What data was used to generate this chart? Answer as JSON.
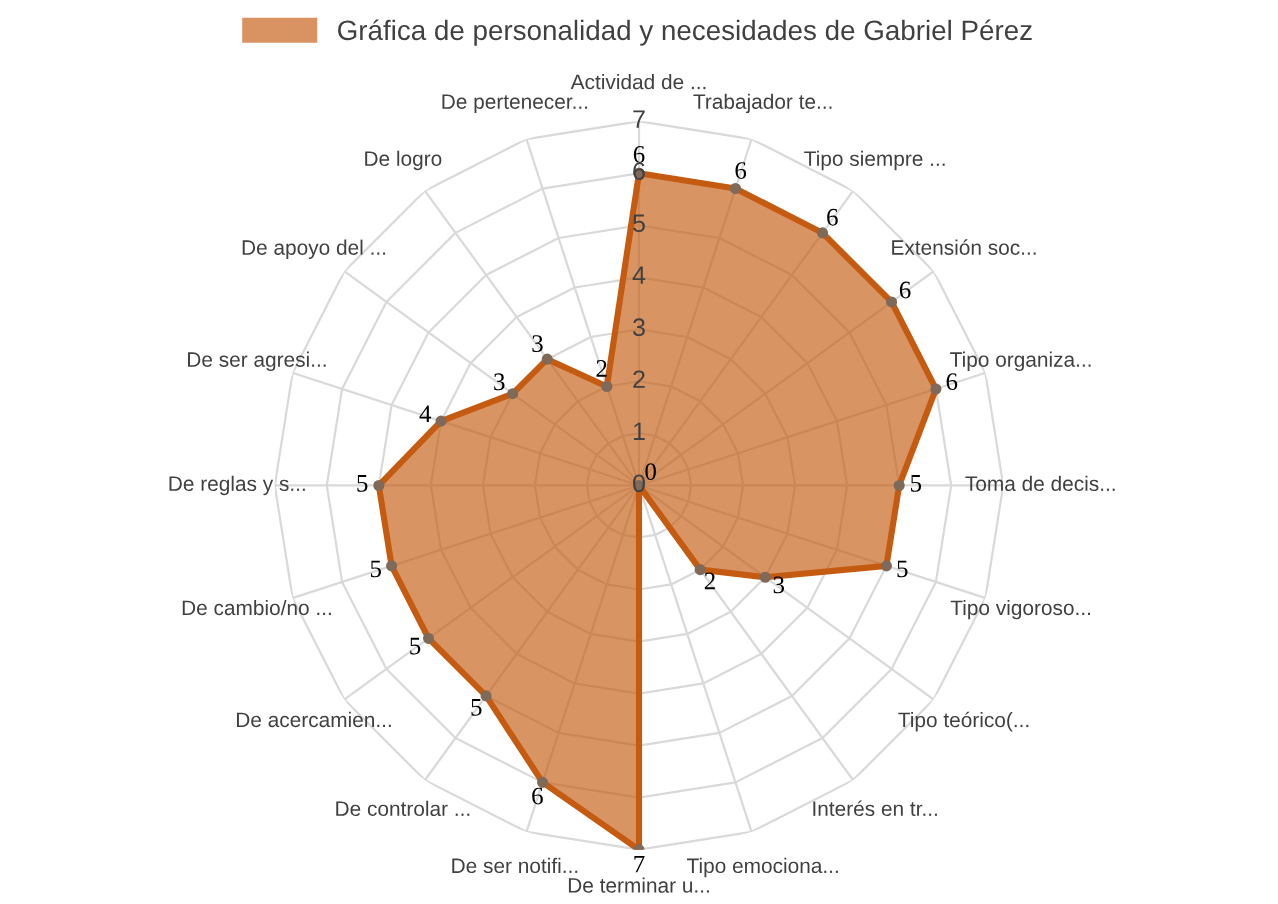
{
  "chart_data": {
    "type": "radar",
    "categories": [
      "Actividad de ...",
      "Trabajador te...",
      "Tipo siempre ...",
      "Extensión soc...",
      "Tipo organiza...",
      "Toma de decis...",
      "Tipo vigoroso...",
      "Tipo teórico(...",
      "Interés en tr...",
      "Tipo emociona...",
      "De terminar u...",
      "De ser notifi...",
      "De controlar ...",
      "De acercamien...",
      "De cambio/no ...",
      "De reglas y s...",
      "De ser agresi...",
      "De apoyo del ...",
      "De logro",
      "De pertenecer..."
    ],
    "series": [
      {
        "name": "Gráfica de personalidad y necesidades de Gabriel Pérez",
        "color": "#c55a11",
        "values": [
          6,
          6,
          6,
          6,
          6,
          5,
          5,
          3,
          2,
          0,
          7,
          6,
          5,
          5,
          5,
          5,
          4,
          3,
          3,
          2
        ]
      }
    ],
    "ylim": [
      0,
      7
    ],
    "yticks": [
      0,
      1,
      2,
      3,
      4,
      5,
      6,
      7
    ],
    "grid": true,
    "legend": "top",
    "data_labels": true,
    "marker": "circle",
    "line_style": "solid"
  }
}
